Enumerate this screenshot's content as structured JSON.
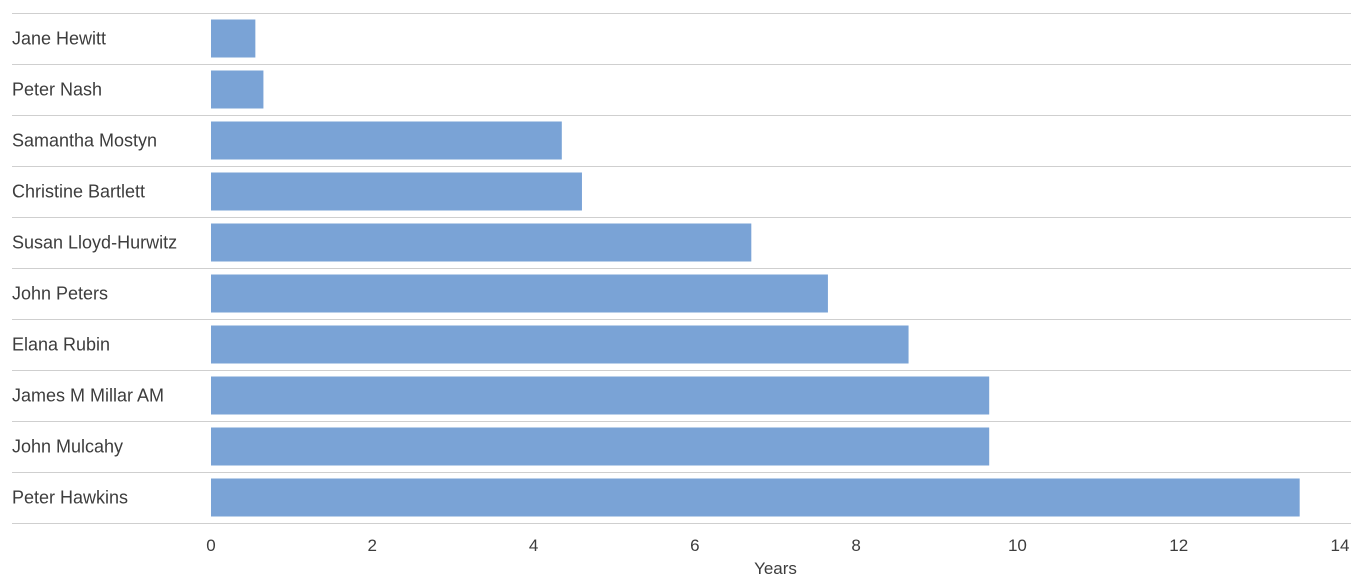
{
  "chart_data": {
    "type": "bar",
    "orientation": "horizontal",
    "categories": [
      "Jane Hewitt",
      "Peter Nash",
      "Samantha Mostyn",
      "Christine Bartlett",
      "Susan Lloyd-Hurwitz",
      "John Peters",
      "Elana Rubin",
      "James M Millar AM",
      "John Mulcahy",
      "Peter Hawkins"
    ],
    "values": [
      0.55,
      0.65,
      4.35,
      4.6,
      6.7,
      7.65,
      8.65,
      9.65,
      9.65,
      13.5
    ],
    "title": "",
    "xlabel": "Years",
    "ylabel": "",
    "xlim": [
      0,
      14
    ],
    "xticks": [
      0,
      2,
      4,
      6,
      8,
      10,
      12,
      14
    ],
    "xtick_labels": [
      "0",
      "2",
      "4",
      "6",
      "8",
      "10",
      "12",
      "14"
    ],
    "grid": "horizontal row separators",
    "legend": "none",
    "bar_color": "#7aa3d6",
    "separator_color": "#cfcfcf",
    "text_color": "#3d3d3d"
  }
}
